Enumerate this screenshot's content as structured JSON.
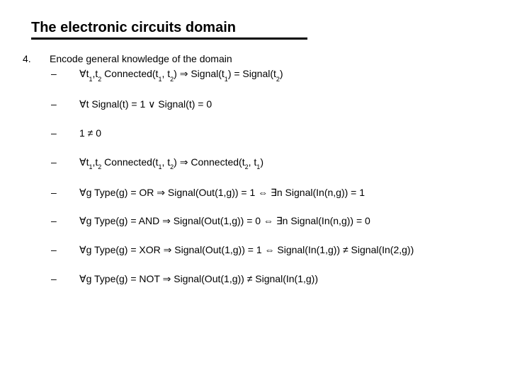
{
  "title": "The electronic circuits domain",
  "number": "4.",
  "lead": "Encode general knowledge of the domain",
  "items": [
    {
      "pre": "∀t",
      "s1": "1",
      "mid1": ",t",
      "s2": "2",
      "mid2": " Connected(t",
      "s3": "1",
      "mid3": ", t",
      "s4": "2",
      "mid4": ") ⇒ Signal(t",
      "s5": "1",
      "mid5": ") = Signal(t",
      "s6": "2",
      "tail": ")"
    },
    {
      "plain": "∀t Signal(t) = 1 ∨ Signal(t) = 0"
    },
    {
      "plain": "1 ≠ 0"
    },
    {
      "pre": "∀t",
      "s1": "1",
      "mid1": ",t",
      "s2": "2",
      "mid2": " Connected(t",
      "s3": "1",
      "mid3": ", t",
      "s4": "2",
      "mid4": ") ⇒ Connected(t",
      "s5": "2",
      "mid5": ", t",
      "s6": "1",
      "tail": ")"
    },
    {
      "plain": "∀g Type(g) = OR ⇒ Signal(Out(1,g)) = 1 ⇔ ∃n Signal(In(n,g)) = 1"
    },
    {
      "plain": "∀g Type(g) = AND ⇒ Signal(Out(1,g)) = 0 ⇔ ∃n Signal(In(n,g)) = 0"
    },
    {
      "plain": "∀g Type(g) = XOR ⇒ Signal(Out(1,g)) = 1 ⇔ Signal(In(1,g)) ≠ Signal(In(2,g))"
    },
    {
      "plain": "∀g Type(g) = NOT ⇒ Signal(Out(1,g)) ≠ Signal(In(1,g))"
    }
  ],
  "colors": {
    "text": "#000000",
    "bg": "#ffffff"
  }
}
